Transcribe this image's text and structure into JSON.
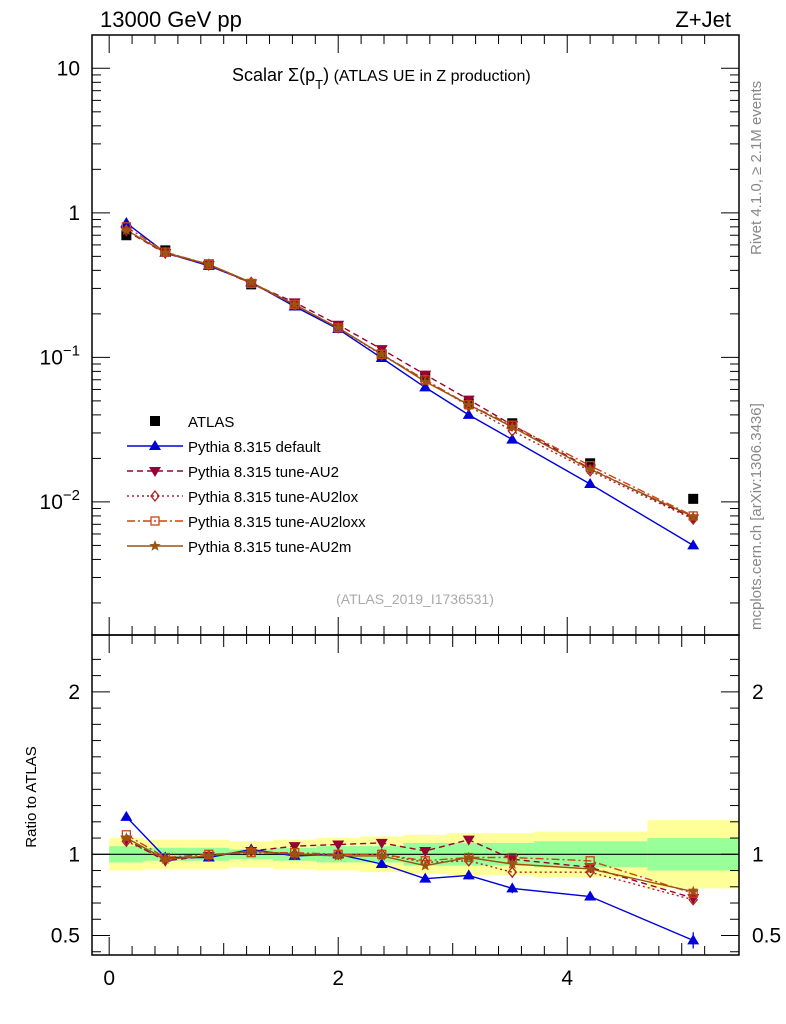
{
  "header": {
    "left": "13000 GeV pp",
    "right": "Z+Jet"
  },
  "side_text": {
    "rivet": "Rivet 4.1.0, ≥ 2.1M events",
    "mcplots": "mcplots.cern.ch [arXiv:1306.3436]"
  },
  "watermark": "(ATLAS_2019_I1736531)",
  "colors": {
    "atlas": "#000000",
    "default": "#0000dd",
    "au2": "#990033",
    "au2lox": "#aa2222",
    "au2loxx": "#cc4411",
    "au2m": "#995511",
    "band_inner": "#99ff99",
    "band_outer": "#ffff99"
  },
  "chart_data": [
    {
      "type": "line",
      "panel": "main",
      "title_parts": {
        "prefix": "Scalar ",
        "sigma": "Σ(p",
        "sub": "T",
        "close": ")",
        "suffix": " (ATLAS UE in Z production)"
      },
      "yscale": "log",
      "xlim": [
        -0.15,
        5.5
      ],
      "ylim": [
        0.0012,
        17
      ],
      "ytick_labels": [
        {
          "value": 10,
          "base": "10",
          "exp": ""
        },
        {
          "value": 1,
          "base": "1",
          "exp": ""
        },
        {
          "value": 0.1,
          "base": "10",
          "exp": "−1"
        },
        {
          "value": 0.01,
          "base": "10",
          "exp": "−2"
        }
      ],
      "legend_position": "left-lower",
      "x": [
        0.15,
        0.49,
        0.87,
        1.24,
        1.62,
        2.0,
        2.38,
        2.76,
        3.14,
        3.52,
        4.2,
        5.1
      ],
      "series": [
        {
          "name": "ATLAS",
          "style": "data",
          "marker": "square",
          "values": [
            0.7,
            0.55,
            0.44,
            0.32,
            0.23,
            0.16,
            0.105,
            0.073,
            0.048,
            0.035,
            0.0185,
            0.0105
          ]
        },
        {
          "name": "Pythia 8.315 default",
          "style": "solid",
          "marker": "triangle-up",
          "values": [
            0.85,
            0.53,
            0.43,
            0.33,
            0.225,
            0.157,
            0.099,
            0.062,
            0.04,
            0.027,
            0.0133,
            0.005
          ]
        },
        {
          "name": "Pythia 8.315 tune-AU2",
          "style": "dashed",
          "marker": "triangle-down",
          "values": [
            0.75,
            0.525,
            0.435,
            0.325,
            0.24,
            0.168,
            0.114,
            0.076,
            0.051,
            0.034,
            0.017,
            0.0077
          ]
        },
        {
          "name": "Pythia 8.315 tune-AU2lox",
          "style": "dotted",
          "marker": "diamond",
          "values": [
            0.76,
            0.53,
            0.44,
            0.33,
            0.23,
            0.16,
            0.104,
            0.07,
            0.046,
            0.031,
            0.0164,
            0.0076
          ]
        },
        {
          "name": "Pythia 8.315 tune-AU2loxx",
          "style": "dashdot",
          "marker": "square-open",
          "values": [
            0.8,
            0.535,
            0.44,
            0.325,
            0.232,
            0.16,
            0.105,
            0.07,
            0.047,
            0.034,
            0.0178,
            0.008
          ]
        },
        {
          "name": "Pythia 8.315 tune-AU2m",
          "style": "solid",
          "marker": "star",
          "values": [
            0.76,
            0.53,
            0.44,
            0.33,
            0.232,
            0.16,
            0.105,
            0.068,
            0.047,
            0.033,
            0.0168,
            0.0079
          ]
        }
      ]
    },
    {
      "type": "line",
      "panel": "ratio",
      "ylabel": "Ratio to ATLAS",
      "xlim": [
        -0.15,
        5.5
      ],
      "ylim": [
        0.38,
        2.35
      ],
      "yticks": [
        0.5,
        1,
        2
      ],
      "ytick_labels": [
        "0.5",
        "1",
        "2"
      ],
      "xticks": [
        0,
        2,
        4
      ],
      "xtick_labels": [
        "0",
        "2",
        "4"
      ],
      "bands": {
        "edges": [
          0.0,
          0.3,
          0.68,
          1.05,
          1.43,
          1.81,
          2.19,
          2.57,
          2.95,
          3.33,
          3.71,
          4.7,
          5.5
        ],
        "inner_low": [
          0.95,
          0.96,
          0.96,
          0.97,
          0.96,
          0.95,
          0.95,
          0.93,
          0.93,
          0.93,
          0.92,
          0.9
        ],
        "inner_high": [
          1.05,
          1.04,
          1.04,
          1.03,
          1.04,
          1.05,
          1.05,
          1.07,
          1.07,
          1.07,
          1.08,
          1.1
        ],
        "outer_low": [
          0.9,
          0.91,
          0.91,
          0.92,
          0.91,
          0.9,
          0.89,
          0.88,
          0.87,
          0.87,
          0.86,
          0.79
        ],
        "outer_high": [
          1.1,
          1.09,
          1.09,
          1.08,
          1.09,
          1.1,
          1.11,
          1.12,
          1.13,
          1.13,
          1.14,
          1.21
        ]
      },
      "x": [
        0.15,
        0.49,
        0.87,
        1.24,
        1.62,
        2.0,
        2.38,
        2.76,
        3.14,
        3.52,
        4.2,
        5.1
      ],
      "series": [
        {
          "name": "Pythia 8.315 default",
          "style": "solid",
          "marker": "triangle-up",
          "values": [
            1.23,
            0.98,
            0.98,
            1.03,
            0.99,
            1.0,
            0.94,
            0.85,
            0.87,
            0.79,
            0.74,
            0.47
          ],
          "errors": [
            0,
            0,
            0,
            0,
            0,
            0,
            0,
            0.02,
            0.025,
            0.03,
            0.025,
            0.05
          ]
        },
        {
          "name": "Pythia 8.315 tune-AU2",
          "style": "dashed",
          "marker": "triangle-down",
          "values": [
            1.09,
            0.96,
            0.99,
            1.02,
            1.05,
            1.06,
            1.07,
            1.02,
            1.09,
            0.97,
            0.92,
            0.73
          ]
        },
        {
          "name": "Pythia 8.315 tune-AU2lox",
          "style": "dotted",
          "marker": "diamond",
          "values": [
            1.08,
            0.97,
            0.99,
            1.02,
            1.0,
            1.0,
            1.0,
            0.95,
            0.96,
            0.89,
            0.89,
            0.72
          ]
        },
        {
          "name": "Pythia 8.315 tune-AU2loxx",
          "style": "dashdot",
          "marker": "square-open",
          "values": [
            1.12,
            0.98,
            1.0,
            1.01,
            1.01,
            1.0,
            1.0,
            0.96,
            0.98,
            0.98,
            0.96,
            0.76
          ]
        },
        {
          "name": "Pythia 8.315 tune-AU2m",
          "style": "solid",
          "marker": "star",
          "values": [
            1.1,
            0.97,
            0.99,
            1.02,
            1.0,
            0.99,
            0.99,
            0.93,
            0.98,
            0.94,
            0.91,
            0.77
          ]
        }
      ]
    }
  ]
}
